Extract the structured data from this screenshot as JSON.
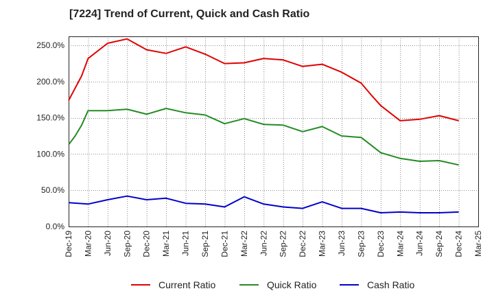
{
  "chart_data": {
    "type": "line",
    "title": "[7224]  Trend of Current, Quick and Cash Ratio",
    "xlabel": "",
    "ylabel": "",
    "ylim": [
      0,
      262.5
    ],
    "ytick_values": [
      0,
      50,
      100,
      150,
      200,
      250
    ],
    "ytick_labels": [
      "0.0%",
      "50.0%",
      "100.0%",
      "150.0%",
      "200.0%",
      "250.0%"
    ],
    "xtick_labels": [
      "Dec-19",
      "Mar-20",
      "Jun-20",
      "Sep-20",
      "Dec-20",
      "Mar-21",
      "Jun-21",
      "Sep-21",
      "Dec-21",
      "Mar-22",
      "Jun-22",
      "Sep-22",
      "Dec-22",
      "Mar-23",
      "Jun-23",
      "Sep-23",
      "Dec-23",
      "Mar-24",
      "Jun-24",
      "Sep-24",
      "Dec-24",
      "Mar-25"
    ],
    "grid": true,
    "legend_position": "bottom",
    "series": [
      {
        "name": "Current Ratio",
        "color": "#e00000",
        "x_index": [
          0,
          0.667,
          1,
          2,
          3,
          4,
          5,
          6,
          7,
          8,
          9,
          10,
          11,
          12,
          13,
          14,
          15,
          15.5,
          16,
          17,
          18,
          19,
          20
        ],
        "values": [
          174,
          208,
          232,
          253,
          259,
          244,
          239,
          248,
          238,
          225,
          226,
          232,
          230,
          221,
          224,
          213,
          198,
          182,
          167,
          146,
          148,
          153,
          146
        ]
      },
      {
        "name": "Quick Ratio",
        "color": "#228b22",
        "x_index": [
          0,
          0.333,
          0.667,
          1,
          2,
          3,
          4,
          5,
          6,
          7,
          8,
          9,
          10,
          11,
          12,
          13,
          14,
          15,
          16,
          17,
          18,
          19,
          20
        ],
        "values": [
          113,
          125,
          140,
          160,
          160,
          162,
          155,
          163,
          157,
          154,
          142,
          149,
          141,
          140,
          131,
          138,
          125,
          123,
          102,
          94,
          90,
          91,
          85
        ]
      },
      {
        "name": "Cash Ratio",
        "color": "#0000cc",
        "x_index": [
          0,
          1,
          2,
          3,
          4,
          5,
          6,
          7,
          8,
          9,
          10,
          11,
          12,
          13,
          14,
          15,
          16,
          17,
          18,
          19,
          20
        ],
        "values": [
          33,
          31,
          37,
          42,
          37,
          39,
          32,
          31,
          27,
          41,
          31,
          27,
          25,
          34,
          25,
          25,
          19,
          20,
          19,
          19,
          20
        ]
      }
    ]
  }
}
